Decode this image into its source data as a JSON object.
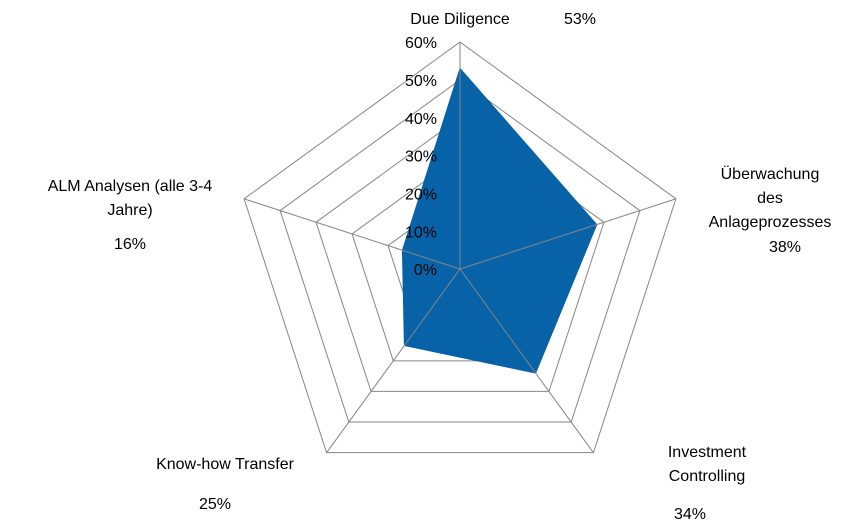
{
  "chart_data": {
    "type": "radar",
    "categories": [
      "Due Diligence",
      "Überwachung des\nAnlageprozesses",
      "Investment Controlling",
      "Know-how Transfer",
      "ALM Analysen (alle 3-4\nJahre)"
    ],
    "values": [
      53,
      38,
      34,
      25,
      16
    ],
    "value_labels": [
      "53%",
      "38%",
      "34%",
      "25%",
      "16%"
    ],
    "color": "#0762a7",
    "ylim": [
      0,
      60
    ],
    "yticks": [
      {
        "value": 0,
        "label": "0%"
      },
      {
        "value": 10,
        "label": "10%"
      },
      {
        "value": 20,
        "label": "20%"
      },
      {
        "value": 30,
        "label": "30%"
      },
      {
        "value": 40,
        "label": "40%"
      },
      {
        "value": 50,
        "label": "50%"
      },
      {
        "value": 60,
        "label": "60%"
      }
    ],
    "grid": true
  }
}
